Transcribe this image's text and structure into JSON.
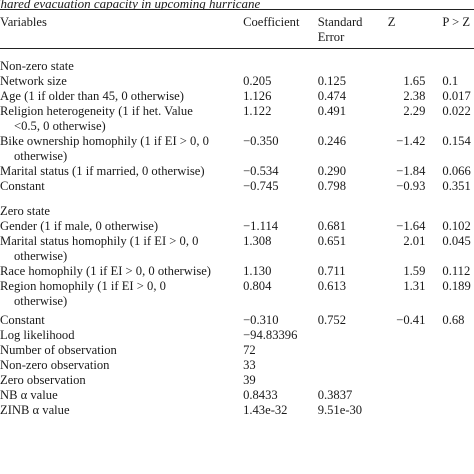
{
  "caption": "Shared evacuation capacity in upcoming hurricane",
  "headers": {
    "variables": "Variables",
    "coefficient": "Coefficient",
    "standard_error": "Standard Error",
    "z": "Z",
    "p": "P > Z"
  },
  "sections": [
    {
      "title": "Non-zero state",
      "rows": [
        {
          "variable": "Network size",
          "cont": "",
          "coef": "0.205",
          "se": "0.125",
          "z": "1.65",
          "p": "0.1"
        },
        {
          "variable": "Age (1 if older than 45, 0 otherwise)",
          "cont": "",
          "coef": "1.126",
          "se": "0.474",
          "z": "2.38",
          "p": "0.017"
        },
        {
          "variable": "Religion heterogeneity (1 if het. Value",
          "cont": "<0.5, 0 otherwise)",
          "coef": "1.122",
          "se": "0.491",
          "z": "2.29",
          "p": "0.022"
        },
        {
          "variable": "Bike ownership homophily (1 if EI > 0, 0",
          "cont": "otherwise)",
          "coef": "−0.350",
          "se": "0.246",
          "z": "−1.42",
          "p": "0.154"
        },
        {
          "variable": "Marital status (1 if married, 0 otherwise)",
          "cont": "",
          "coef": "−0.534",
          "se": "0.290",
          "z": "−1.84",
          "p": "0.066"
        },
        {
          "variable": "Constant",
          "cont": "",
          "coef": "−0.745",
          "se": "0.798",
          "z": "−0.93",
          "p": "0.351"
        }
      ]
    },
    {
      "title": "Zero state",
      "rows": [
        {
          "variable": "Gender (1 if male, 0 otherwise)",
          "cont": "",
          "coef": "−1.114",
          "se": "0.681",
          "z": "−1.64",
          "p": "0.102"
        },
        {
          "variable": "Marital status homophily (1 if EI > 0, 0",
          "cont": "otherwise)",
          "coef": "1.308",
          "se": "0.651",
          "z": "2.01",
          "p": "0.045"
        },
        {
          "variable": "Race homophily (1 if EI > 0, 0 otherwise)",
          "cont": "",
          "coef": "1.130",
          "se": "0.711",
          "z": "1.59",
          "p": "0.112"
        },
        {
          "variable": "Region homophily (1 if EI > 0, 0",
          "cont": "otherwise)",
          "coef": "0.804",
          "se": "0.613",
          "z": "1.31",
          "p": "0.189"
        },
        {
          "variable": "Constant",
          "cont": "",
          "coef": "−0.310",
          "se": "0.752",
          "z": "−0.41",
          "p": "0.68"
        }
      ]
    }
  ],
  "stats": [
    {
      "label": "Log likelihood",
      "coef": "−94.83396",
      "se": ""
    },
    {
      "label": "Number of observation",
      "coef": "72",
      "se": ""
    },
    {
      "label": "Non-zero observation",
      "coef": "33",
      "se": ""
    },
    {
      "label": "Zero observation",
      "coef": "39",
      "se": ""
    },
    {
      "label": "NB α value",
      "coef": "0.8433",
      "se": "0.3837"
    },
    {
      "label": "ZINB α value",
      "coef": "1.43e-32",
      "se": "9.51e-30"
    }
  ]
}
